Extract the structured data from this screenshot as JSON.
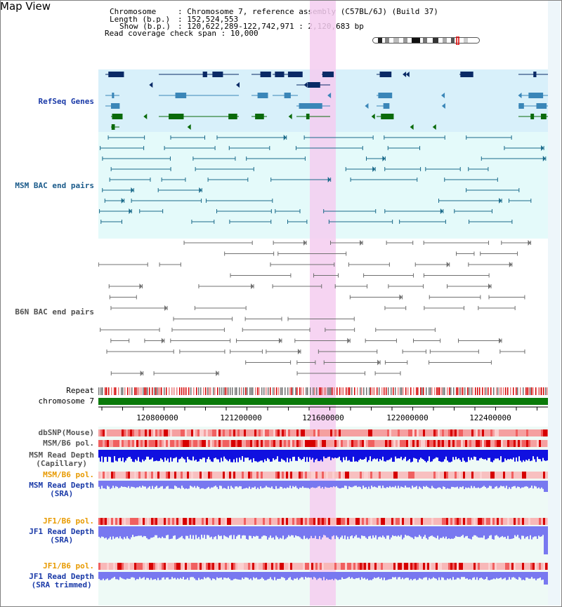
{
  "title": "Map View",
  "header": {
    "chromosome_label": "Chromosome",
    "chromosome_value": "Chromosome 7, reference assembly (C57BL/6J) (Build 37)",
    "length_label": "Length (b.p.)",
    "length_value": "152,524,553",
    "show_label": "Show (b.p.)",
    "show_value": "120,622,289-122,742,971 : 2,120,683 bp",
    "coverage_label": "Read coverage check span",
    "coverage_value": "10,000"
  },
  "tracks": {
    "refseq": "RefSeq Genes",
    "msm_bac": "MSM BAC end pairs",
    "b6n_bac": "B6N BAC end pairs",
    "repeat": "Repeat",
    "chromosome": "chromosome 7",
    "dbsnp": "dbSNP(Mouse)",
    "msm_b6_pol_1": "MSM/B6 pol.",
    "msm_read_cap_1": "MSM Read Depth",
    "msm_read_cap_2": "(Capillary)",
    "msm_b6_pol_2": "MSM/B6 pol.",
    "msm_read_sra_1": "MSM Read Depth",
    "msm_read_sra_2": "(SRA)",
    "jf1_b6_pol_1": "JF1/B6 pol.",
    "jf1_read_sra_1": "JF1 Read Depth",
    "jf1_read_sra_2": "(SRA)",
    "jf1_b6_pol_2": "JF1/B6 pol.",
    "jf1_read_trim_1": "JF1 Read Depth",
    "jf1_read_trim_2": "(SRA trimmed)"
  },
  "ruler": {
    "ticks": [
      "120800000",
      "121200000",
      "121600000",
      "122000000",
      "122400000"
    ]
  },
  "colors": {
    "refseq_bg": "#d8f0fa",
    "highlight": "#f4ccf0",
    "msm_color": "#1a6a8a",
    "b6n_color": "#606060",
    "gene_dark": "#0a2a66",
    "gene_mid": "#3a86b8",
    "gene_green": "#0a6a0a",
    "chrom_green": "#0a7a0a",
    "depth_blue": "#1010e0",
    "depth_light": "#7878f0"
  }
}
